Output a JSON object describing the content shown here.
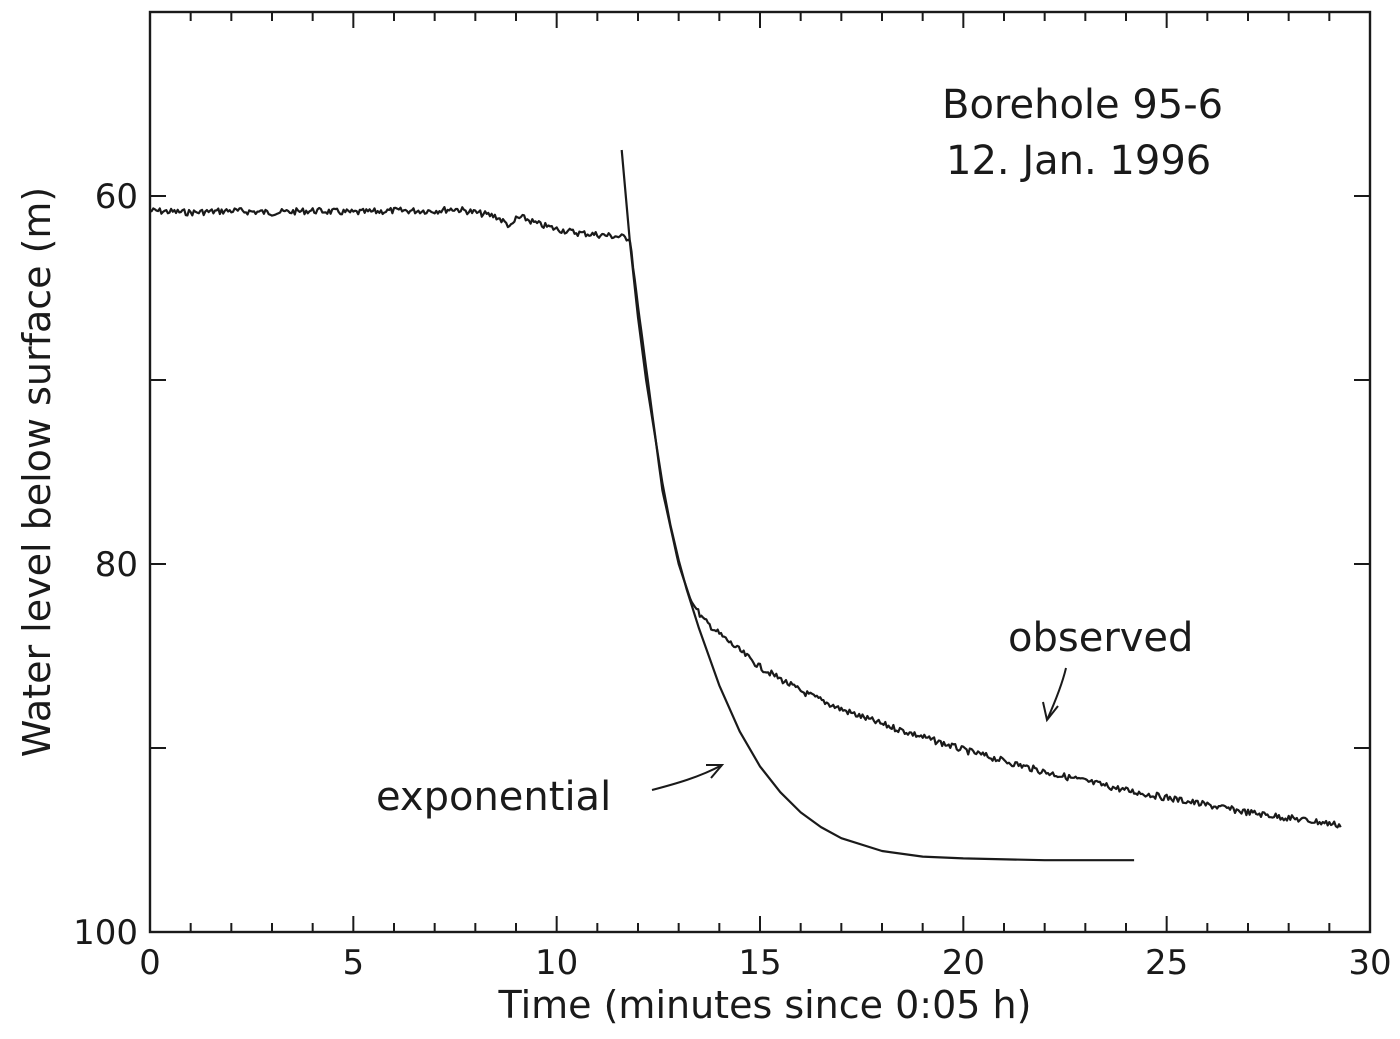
{
  "chart_data": {
    "type": "line",
    "title": "",
    "xlabel": "Time (minutes since 0:05 h)",
    "ylabel": "Water level below surface (m)",
    "xlim": [
      0,
      30
    ],
    "ylim": [
      100,
      50
    ],
    "y_inverted": true,
    "grid": false,
    "x_ticks": [
      0,
      5,
      10,
      15,
      20,
      25,
      30
    ],
    "x_tick_labels": [
      "0",
      "5",
      "10",
      "15",
      "20",
      "25",
      "30"
    ],
    "y_ticks": [
      60,
      80,
      100
    ],
    "y_tick_labels": [
      "60",
      "80",
      "100"
    ],
    "annotations": [
      {
        "text": "Borehole 95-6"
      },
      {
        "text": "12. Jan. 1996"
      },
      {
        "text": "observed"
      },
      {
        "text": "exponential"
      }
    ],
    "series": [
      {
        "name": "observed",
        "x": [
          0,
          1,
          2,
          3,
          4,
          5,
          6,
          7,
          7.5,
          8,
          8.5,
          8.9,
          9,
          9.2,
          9.5,
          10,
          10.5,
          11,
          11.5,
          11.8,
          12,
          12.3,
          12.6,
          13,
          13.3,
          13.6,
          14,
          15,
          16,
          17,
          18,
          19,
          20,
          21,
          22,
          23,
          24,
          25,
          26,
          27,
          28,
          29,
          29.3
        ],
        "y": [
          60.8,
          60.9,
          60.8,
          60.9,
          60.8,
          60.9,
          60.8,
          60.8,
          60.7,
          60.9,
          61.1,
          61.7,
          61.2,
          61.2,
          61.5,
          61.8,
          62.0,
          62.1,
          62.2,
          62.3,
          66.0,
          71.0,
          76.0,
          80.0,
          82.0,
          83.0,
          83.8,
          85.6,
          86.9,
          87.9,
          88.7,
          89.4,
          90.1,
          90.7,
          91.3,
          91.8,
          92.3,
          92.7,
          93.1,
          93.5,
          93.8,
          94.1,
          94.2
        ]
      },
      {
        "name": "exponential",
        "x": [
          11.6,
          11.8,
          12,
          12.2,
          12.4,
          12.6,
          12.8,
          13,
          13.2,
          13.5,
          14,
          14.5,
          15,
          15.5,
          16,
          16.5,
          17,
          18,
          19,
          20,
          22,
          24.2
        ],
        "y": [
          57.5,
          62.5,
          66.6,
          70.0,
          72.8,
          75.6,
          77.9,
          79.8,
          81.4,
          83.5,
          86.6,
          89.1,
          91.0,
          92.4,
          93.5,
          94.3,
          94.9,
          95.6,
          95.9,
          96.0,
          96.1,
          96.1
        ]
      }
    ]
  }
}
